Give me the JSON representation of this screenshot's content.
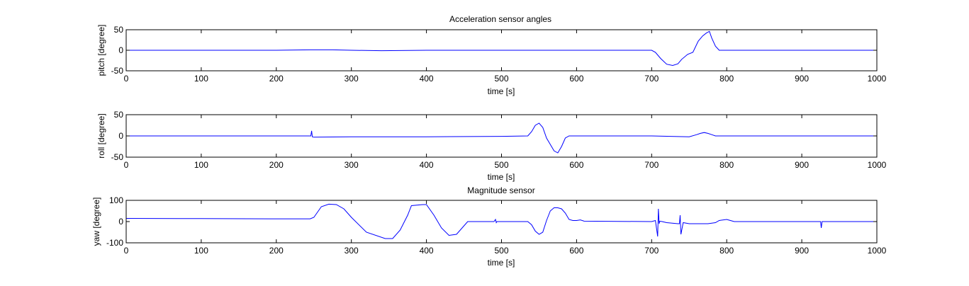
{
  "figure": {
    "background": "#ffffff",
    "line_color": "#0000ff",
    "axes_color": "#000000"
  },
  "chart_data": [
    {
      "type": "line",
      "title": "Acceleration sensor angles",
      "xlabel": "time [s]",
      "ylabel": "pitch [degree]",
      "xlim": [
        0,
        1000
      ],
      "ylim": [
        -50,
        50
      ],
      "xticks": [
        0,
        100,
        200,
        300,
        400,
        500,
        600,
        700,
        800,
        900,
        1000
      ],
      "yticks": [
        -50,
        0,
        50
      ],
      "grid": false,
      "series": [
        {
          "color": "#0000ff",
          "x": [
            0,
            100,
            200,
            245,
            275,
            300,
            340,
            400,
            500,
            600,
            700,
            705,
            712,
            720,
            728,
            735,
            740,
            748,
            755,
            762,
            768,
            773,
            777,
            780,
            785,
            790,
            800,
            900,
            1000
          ],
          "y": [
            0,
            0,
            0,
            1,
            1,
            0,
            -1,
            0,
            0,
            0,
            0,
            -5,
            -20,
            -34,
            -37,
            -33,
            -22,
            -10,
            -5,
            22,
            35,
            42,
            46,
            30,
            10,
            0,
            0,
            0,
            0
          ]
        }
      ]
    },
    {
      "type": "line",
      "title": "",
      "xlabel": "time [s]",
      "ylabel": "roll [degree]",
      "xlim": [
        0,
        1000
      ],
      "ylim": [
        -50,
        50
      ],
      "xticks": [
        0,
        100,
        200,
        300,
        400,
        500,
        600,
        700,
        800,
        900,
        1000
      ],
      "yticks": [
        -50,
        0,
        50
      ],
      "grid": false,
      "series": [
        {
          "color": "#0000ff",
          "x": [
            0,
            100,
            200,
            246,
            247,
            248,
            250,
            300,
            400,
            500,
            535,
            540,
            545,
            550,
            555,
            560,
            565,
            570,
            575,
            580,
            585,
            590,
            600,
            700,
            750,
            760,
            765,
            770,
            775,
            780,
            785,
            790,
            900,
            1000
          ],
          "y": [
            0,
            0,
            0,
            0,
            12,
            -2,
            -3,
            -2,
            -2,
            -1,
            0,
            10,
            25,
            30,
            20,
            -5,
            -20,
            -35,
            -40,
            -25,
            -5,
            0,
            0,
            0,
            -2,
            3,
            6,
            8,
            6,
            3,
            0,
            0,
            0,
            0
          ]
        }
      ]
    },
    {
      "type": "line",
      "title": "Magnitude sensor",
      "xlabel": "time [s]",
      "ylabel": "yaw [degree]",
      "xlim": [
        0,
        1000
      ],
      "ylim": [
        -100,
        100
      ],
      "xticks": [
        0,
        100,
        200,
        300,
        400,
        500,
        600,
        700,
        800,
        900,
        1000
      ],
      "yticks": [
        -100,
        0,
        100
      ],
      "grid": false,
      "series": [
        {
          "color": "#0000ff",
          "x": [
            0,
            100,
            200,
            245,
            250,
            260,
            270,
            280,
            290,
            300,
            320,
            345,
            355,
            365,
            375,
            380,
            395,
            400,
            410,
            420,
            430,
            440,
            455,
            490,
            492,
            493,
            494,
            535,
            540,
            545,
            550,
            555,
            560,
            565,
            570,
            575,
            580,
            585,
            590,
            595,
            600,
            605,
            610,
            700,
            705,
            708,
            709,
            710,
            711,
            714,
            720,
            735,
            737,
            738,
            739,
            742,
            750,
            760,
            775,
            785,
            790,
            800,
            805,
            810,
            900,
            925,
            926,
            927,
            1000
          ],
          "y": [
            15,
            14,
            13,
            13,
            20,
            70,
            82,
            80,
            60,
            20,
            -50,
            -80,
            -80,
            -40,
            30,
            75,
            80,
            80,
            30,
            -30,
            -65,
            -60,
            0,
            0,
            10,
            -5,
            0,
            0,
            -15,
            -45,
            -60,
            -50,
            5,
            50,
            65,
            65,
            60,
            40,
            10,
            5,
            5,
            8,
            2,
            0,
            5,
            -70,
            60,
            -10,
            2,
            0,
            -5,
            -10,
            -10,
            30,
            -60,
            -5,
            -10,
            -10,
            -10,
            -5,
            5,
            10,
            5,
            0,
            0,
            0,
            -30,
            0,
            0
          ]
        }
      ]
    }
  ]
}
